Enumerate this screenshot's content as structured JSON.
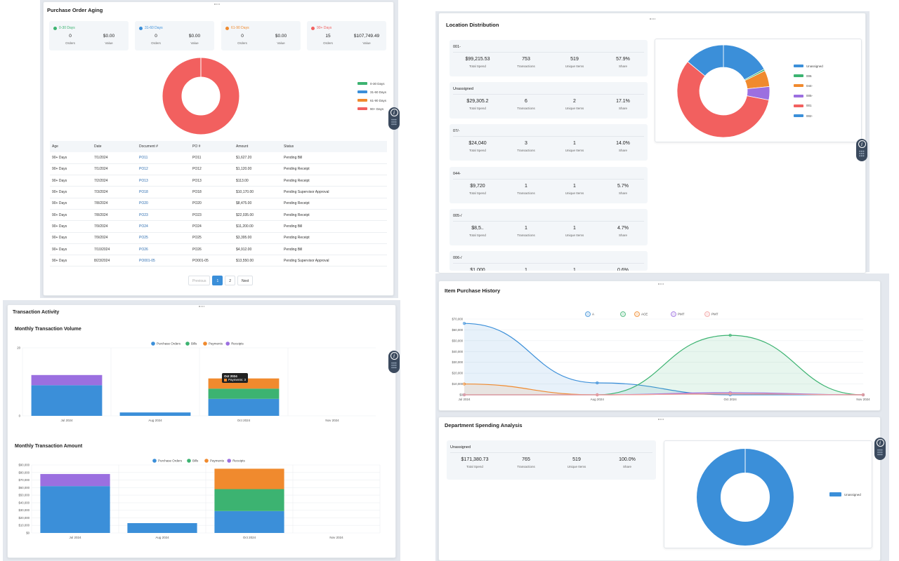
{
  "aging": {
    "title": "Purchase Order Aging",
    "cards": [
      {
        "label": "0-30 Days",
        "color": "#3cb371",
        "orders": "0",
        "value": "$0.00"
      },
      {
        "label": "31-60 Days",
        "color": "#3b8fd9",
        "orders": "0",
        "value": "$0.00"
      },
      {
        "label": "61-90 Days",
        "color": "#f08a2e",
        "orders": "0",
        "value": "$0.00"
      },
      {
        "label": "90+ Days",
        "color": "#f2605f",
        "orders": "15",
        "value": "$107,749.49"
      }
    ],
    "orders_label": "Orders",
    "value_label": "Value",
    "legend": [
      "0-30 Days",
      "31-60 Days",
      "61-90 Days",
      "90+ Days"
    ],
    "columns": [
      "Age",
      "Date",
      "Document #",
      "PO #",
      "Amount",
      "Status"
    ],
    "rows": [
      [
        "90+ Days",
        "7/1/2024",
        "PO11",
        "PO11",
        "$1,627.20",
        "Pending Bill"
      ],
      [
        "90+ Days",
        "7/1/2024",
        "PO12",
        "PO12",
        "$1,120.00",
        "Pending Receipt"
      ],
      [
        "90+ Days",
        "7/2/2024",
        "PO13",
        "PO13",
        "$113.00",
        "Pending Receipt"
      ],
      [
        "90+ Days",
        "7/3/2024",
        "PO18",
        "PO18",
        "$10,170.00",
        "Pending Supervisor Approval"
      ],
      [
        "90+ Days",
        "7/8/2024",
        "PO20",
        "PO20",
        "$8,475.00",
        "Pending Receipt"
      ],
      [
        "90+ Days",
        "7/8/2024",
        "PO23",
        "PO23",
        "$22,035.00",
        "Pending Receipt"
      ],
      [
        "90+ Days",
        "7/9/2024",
        "PO24",
        "PO24",
        "$11,200.00",
        "Pending Bill"
      ],
      [
        "90+ Days",
        "7/9/2024",
        "PO25",
        "PO25",
        "$3,395.00",
        "Pending Receipt"
      ],
      [
        "90+ Days",
        "7/10/2024",
        "PO26",
        "PO26",
        "$4,912.00",
        "Pending Bill"
      ],
      [
        "90+ Days",
        "8/23/2024",
        "PO001-05",
        "PO001-05",
        "$13,550.00",
        "Pending Supervisor Approval"
      ]
    ],
    "pager": {
      "prev": "Previous",
      "pages": [
        "1",
        "2"
      ],
      "next": "Next"
    }
  },
  "location": {
    "title": "Location Distribution",
    "cards": [
      {
        "name": "001-",
        "spend": "$99,215.53",
        "transactions": "753",
        "items": "519",
        "share": "57.9%"
      },
      {
        "name": "Unassigned",
        "spend": "$29,305.2",
        "transactions": "6",
        "items": "2",
        "share": "17.1%"
      },
      {
        "name": "07/-",
        "spend": "$24,040",
        "transactions": "3",
        "items": "1",
        "share": "14.0%"
      },
      {
        "name": "044-",
        "spend": "$9,720",
        "transactions": "1",
        "items": "1",
        "share": "5.7%"
      },
      {
        "name": "005-/",
        "spend": "$8,5..",
        "transactions": "1",
        "items": "1",
        "share": "4.7%"
      },
      {
        "name": "006-/",
        "spend": "$1,000",
        "transactions": "1",
        "items": "1",
        "share": "0.6%"
      }
    ],
    "labels": {
      "spend": "Total Spend",
      "transactions": "Transactions",
      "items": "Unique Items",
      "share": "Share"
    },
    "legend": [
      {
        "name": "Unassigned",
        "color": "#3b8fd9"
      },
      {
        "name": "006",
        "color": "#3cb371"
      },
      {
        "name": "044-",
        "color": "#f08a2e"
      },
      {
        "name": "005-",
        "color": "#9b6fe0"
      },
      {
        "name": "001",
        "color": "#f2605f"
      },
      {
        "name": "002-",
        "color": "#3b8fd9"
      }
    ]
  },
  "transactions": {
    "title": "Transaction Activity",
    "volume_title": "Monthly Transaction Volume",
    "amount_title": "Monthly Transaction Amount",
    "tooltip": {
      "title": "Oct 2024",
      "text": "Payments: 3"
    }
  },
  "history": {
    "title": "Item Purchase History",
    "legend": [
      "A",
      "",
      "ACE",
      "PMT",
      "PMT"
    ]
  },
  "department": {
    "title": "Department Spending Analysis",
    "card": {
      "name": "Unassigned",
      "spend": "$171,380.73",
      "transactions": "765",
      "items": "519",
      "share": "100.0%"
    },
    "labels": {
      "spend": "Total Spend",
      "transactions": "Transactions",
      "items": "Unique Items",
      "share": "Share"
    },
    "legend": "Unassigned"
  },
  "chart_data": [
    {
      "type": "pie",
      "title": "Purchase Order Aging",
      "categories": [
        "0-30 Days",
        "31-60 Days",
        "61-90 Days",
        "90+ Days"
      ],
      "values": [
        0,
        0,
        0,
        107749.49
      ],
      "colors": [
        "#3cb371",
        "#3b8fd9",
        "#f08a2e",
        "#f2605f"
      ]
    },
    {
      "type": "pie",
      "title": "Location Distribution",
      "categories": [
        "Unassigned",
        "006",
        "044-",
        "005-",
        "001",
        "002-"
      ],
      "values": [
        17.1,
        0.6,
        5.7,
        4.7,
        57.9,
        14.0
      ],
      "colors": [
        "#3b8fd9",
        "#3cb371",
        "#f08a2e",
        "#9b6fe0",
        "#f2605f",
        "#3b8fd9"
      ]
    },
    {
      "type": "bar",
      "title": "Monthly Transaction Volume",
      "categories": [
        "Jul 2024",
        "Aug 2024",
        "Oct 2024",
        "Nov 2024"
      ],
      "ylim": [
        0,
        20
      ],
      "yticks": [
        "20",
        "0"
      ],
      "legend_position": "top",
      "series": [
        {
          "name": "Purchase Orders",
          "color": "#3b8fd9",
          "values": [
            9,
            1,
            5,
            0
          ]
        },
        {
          "name": "Bills",
          "color": "#3cb371",
          "values": [
            0,
            0,
            3,
            0
          ]
        },
        {
          "name": "Payments",
          "color": "#f08a2e",
          "values": [
            0,
            0,
            3,
            0
          ]
        },
        {
          "name": "Receipts",
          "color": "#9b6fe0",
          "values": [
            3,
            0,
            0,
            0
          ]
        }
      ]
    },
    {
      "type": "bar",
      "title": "Monthly Transaction Amount",
      "categories": [
        "Jul 2024",
        "Aug 2024",
        "Oct 2024",
        "Nov 2024"
      ],
      "ylim": [
        0,
        90000
      ],
      "yticks": [
        "$90,000",
        "$80,000",
        "$70,000",
        "$60,000",
        "$50,000",
        "$40,000",
        "$30,000",
        "$20,000",
        "$10,000",
        "$0"
      ],
      "legend_position": "top",
      "series": [
        {
          "name": "Purchase Orders",
          "color": "#3b8fd9",
          "values": [
            62000,
            13000,
            29000,
            0
          ]
        },
        {
          "name": "Bills",
          "color": "#3cb371",
          "values": [
            0,
            0,
            29000,
            0
          ]
        },
        {
          "name": "Payments",
          "color": "#f08a2e",
          "values": [
            0,
            0,
            27000,
            0
          ]
        },
        {
          "name": "Receipts",
          "color": "#9b6fe0",
          "values": [
            16000,
            0,
            0,
            0
          ]
        }
      ]
    },
    {
      "type": "area",
      "title": "Item Purchase History",
      "categories": [
        "Jul 2024",
        "Aug 2024",
        "Oct 2024",
        "Nov 2024"
      ],
      "ylim": [
        0,
        70000
      ],
      "yticks": [
        "$70,000",
        "$60,000",
        "$50,000",
        "$40,000",
        "$30,000",
        "$20,000",
        "$10,000",
        "$0"
      ],
      "series": [
        {
          "name": "A",
          "color": "#3b8fd9",
          "values": [
            66000,
            11000,
            0,
            0
          ]
        },
        {
          "name": "",
          "color": "#3cb371",
          "values": [
            0,
            0,
            55000,
            0
          ]
        },
        {
          "name": "ACE",
          "color": "#f08a2e",
          "values": [
            10000,
            0,
            1000,
            0
          ]
        },
        {
          "name": "PMT",
          "color": "#9b6fe0",
          "values": [
            0,
            0,
            2000,
            0
          ]
        },
        {
          "name": "PMT",
          "color": "#f2a0a0",
          "values": [
            0,
            0,
            1000,
            0
          ]
        }
      ]
    },
    {
      "type": "pie",
      "title": "Department Spending Analysis",
      "categories": [
        "Unassigned"
      ],
      "values": [
        171380.73
      ],
      "colors": [
        "#3b8fd9"
      ]
    }
  ]
}
